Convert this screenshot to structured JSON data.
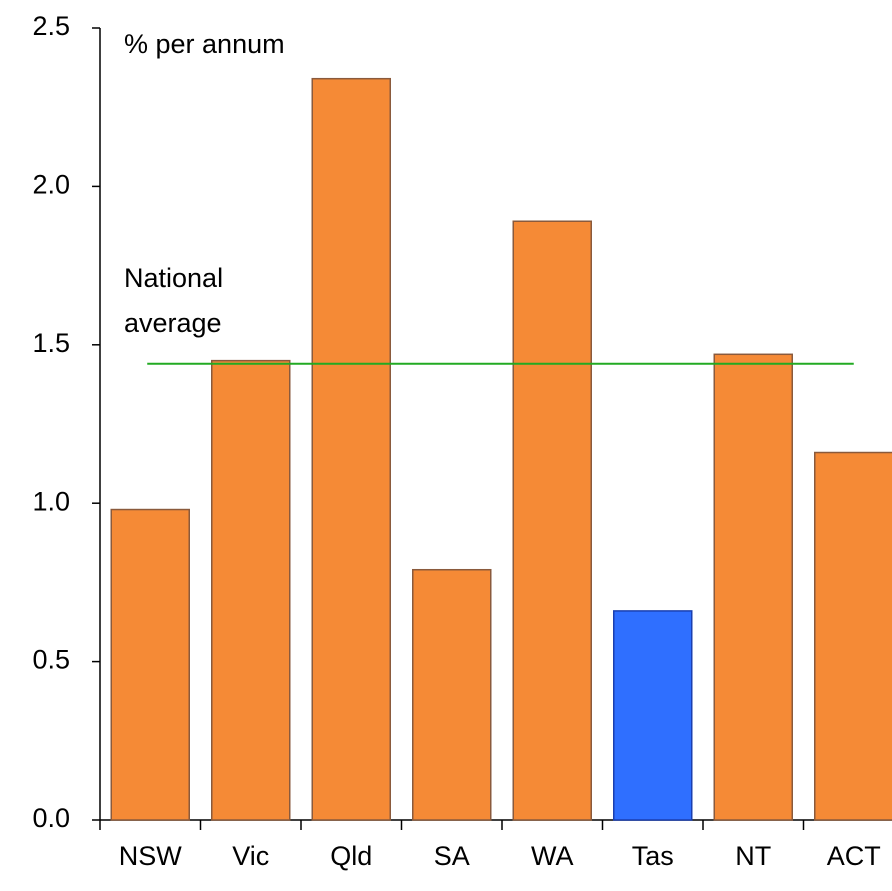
{
  "chart_data": {
    "type": "bar",
    "ylabel": "% per annum",
    "categories": [
      "NSW",
      "Vic",
      "Qld",
      "SA",
      "WA",
      "Tas",
      "NT",
      "ACT"
    ],
    "values": [
      0.98,
      1.45,
      2.34,
      0.79,
      1.89,
      0.66,
      1.47,
      1.16
    ],
    "colors": [
      "#f58a36",
      "#f58a36",
      "#f58a36",
      "#f58a36",
      "#f58a36",
      "#2f6fff",
      "#f58a36",
      "#f58a36"
    ],
    "ylim": [
      0,
      2.5
    ],
    "yticks": [
      {
        "value": 0,
        "label": "0.0"
      },
      0.5,
      {
        "value": 1,
        "label": "1.0"
      },
      1.5,
      {
        "value": 2,
        "label": "2.0"
      },
      2.5
    ],
    "reference_line": {
      "label": [
        "National",
        "average"
      ],
      "value": 1.44,
      "color": "#22aa22"
    }
  }
}
